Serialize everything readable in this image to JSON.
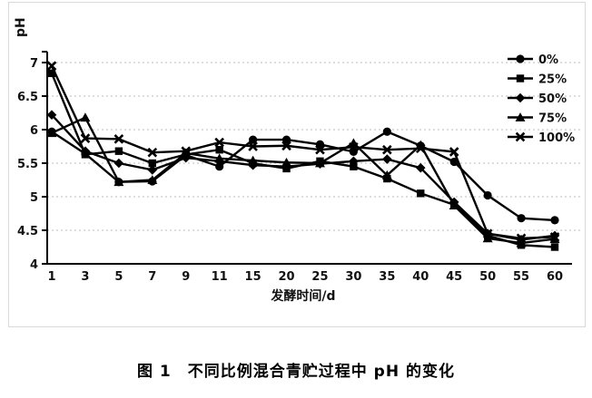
{
  "figure": {
    "caption": "图 1　不同比例混合青贮过程中 pH 的变化"
  },
  "chart_data": {
    "type": "line",
    "title": "",
    "xlabel": "发酵时间/d",
    "ylabel": "pH",
    "x_categories": [
      "1",
      "3",
      "5",
      "7",
      "9",
      "11",
      "15",
      "20",
      "25",
      "30",
      "35",
      "40",
      "45",
      "50",
      "55",
      "60"
    ],
    "ylim": [
      4,
      7
    ],
    "yticks": [
      4,
      4.5,
      5,
      5.5,
      6,
      6.5,
      7
    ],
    "grid": "horizontal-dotted",
    "legend_position": "top-right",
    "series_color": "#000000",
    "grid_color": "#bbbbbb",
    "axis_color": "#000000",
    "series": [
      {
        "name": "0%",
        "marker": "circle",
        "values": [
          5.97,
          5.64,
          5.22,
          5.23,
          5.62,
          5.45,
          5.85,
          5.85,
          5.78,
          5.67,
          5.97,
          5.76,
          5.52,
          5.02,
          4.68,
          4.65
        ]
      },
      {
        "name": "25%",
        "marker": "square",
        "values": [
          6.84,
          5.63,
          5.68,
          5.5,
          5.63,
          5.7,
          5.5,
          5.42,
          5.53,
          5.45,
          5.27,
          5.05,
          4.88,
          4.42,
          4.28,
          4.25
        ]
      },
      {
        "name": "50%",
        "marker": "diamond",
        "values": [
          6.22,
          5.68,
          5.5,
          5.4,
          5.58,
          5.53,
          5.47,
          5.45,
          5.49,
          5.53,
          5.56,
          5.43,
          4.92,
          4.45,
          4.36,
          4.42
        ]
      },
      {
        "name": "75%",
        "marker": "triangle",
        "values": [
          5.95,
          6.18,
          5.22,
          5.25,
          5.65,
          5.57,
          5.54,
          5.51,
          5.5,
          5.8,
          5.32,
          5.77,
          4.87,
          4.38,
          4.31,
          4.37
        ]
      },
      {
        "name": "100%",
        "marker": "x",
        "values": [
          6.95,
          5.87,
          5.86,
          5.66,
          5.68,
          5.81,
          5.75,
          5.76,
          5.7,
          5.74,
          5.7,
          5.72,
          5.67,
          4.45,
          4.38,
          4.4
        ]
      }
    ]
  }
}
